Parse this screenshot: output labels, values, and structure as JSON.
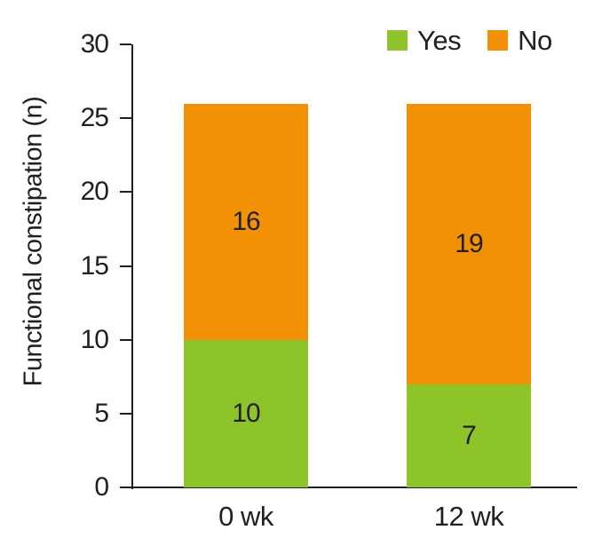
{
  "figure": {
    "background": "#ffffff"
  },
  "chart_data": {
    "type": "bar",
    "stacked": true,
    "title": "",
    "ylabel": "Functional constipation (n)",
    "xlabel": "",
    "categories": [
      "0 wk",
      "12 wk"
    ],
    "series": [
      {
        "name": "Yes",
        "color": "#8dc42a",
        "values": [
          10,
          7
        ]
      },
      {
        "name": "No",
        "color": "#f29105",
        "values": [
          16,
          19
        ]
      }
    ],
    "segment_labels": [
      [
        "10",
        "16"
      ],
      [
        "7",
        "19"
      ]
    ],
    "totals": [
      26,
      26
    ],
    "ylim": [
      0,
      30
    ],
    "yticks": [
      0,
      5,
      10,
      15,
      20,
      25,
      30
    ],
    "grid": false,
    "legend_position": "top-right",
    "axis_color": "#231f20",
    "text_color": "#231f20"
  }
}
